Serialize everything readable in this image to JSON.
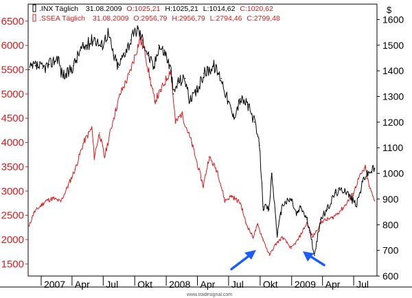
{
  "chart_data": {
    "type": "line",
    "title": "",
    "x_tick_labels": [
      "2007",
      "Apr",
      "Jul",
      "Okt",
      "2008",
      "Apr",
      "Jul",
      "Okt",
      "2009",
      "Apr",
      "Jul"
    ],
    "y_left_ticks": [
      1500,
      2000,
      2500,
      3000,
      3500,
      4000,
      4500,
      5000,
      5500,
      6000,
      6500
    ],
    "y_right_ticks": [
      600,
      700,
      800,
      900,
      1000,
      1100,
      1200,
      1300,
      1400,
      1500,
      1600
    ],
    "y_right_unit": "$",
    "ylim_left": [
      1250,
      6850
    ],
    "ylim_right": [
      600,
      1660
    ],
    "grid": false,
    "legend_position": "top-left",
    "watermark": "www.tradesignal.com",
    "series": [
      {
        "name": ".INX Täglich",
        "axis": "right",
        "color": "#000000",
        "legend": {
          "date": "31.08.2009",
          "open": "O:1025,21",
          "high": "H:1025,21",
          "low": "L:1014,62",
          "close": "C:1020,62"
        },
        "points": [
          [
            "2006-11-27",
            1405
          ],
          [
            "2006-12-15",
            1420
          ],
          [
            "2007-01-05",
            1410
          ],
          [
            "2007-01-25",
            1425
          ],
          [
            "2007-02-20",
            1455
          ],
          [
            "2007-02-28",
            1395
          ],
          [
            "2007-03-14",
            1380
          ],
          [
            "2007-04-05",
            1420
          ],
          [
            "2007-04-25",
            1480
          ],
          [
            "2007-05-15",
            1500
          ],
          [
            "2007-06-05",
            1530
          ],
          [
            "2007-06-25",
            1495
          ],
          [
            "2007-07-15",
            1550
          ],
          [
            "2007-07-31",
            1460
          ],
          [
            "2007-08-15",
            1415
          ],
          [
            "2007-08-31",
            1470
          ],
          [
            "2007-09-20",
            1520
          ],
          [
            "2007-10-09",
            1565
          ],
          [
            "2007-10-25",
            1520
          ],
          [
            "2007-11-10",
            1460
          ],
          [
            "2007-11-26",
            1410
          ],
          [
            "2007-12-10",
            1500
          ],
          [
            "2007-12-31",
            1465
          ],
          [
            "2008-01-15",
            1400
          ],
          [
            "2008-01-22",
            1310
          ],
          [
            "2008-02-05",
            1360
          ],
          [
            "2008-02-25",
            1370
          ],
          [
            "2008-03-10",
            1280
          ],
          [
            "2008-03-31",
            1320
          ],
          [
            "2008-04-20",
            1390
          ],
          [
            "2008-05-19",
            1420
          ],
          [
            "2008-06-10",
            1370
          ],
          [
            "2008-06-30",
            1280
          ],
          [
            "2008-07-15",
            1220
          ],
          [
            "2008-08-05",
            1290
          ],
          [
            "2008-08-25",
            1270
          ],
          [
            "2008-09-15",
            1200
          ],
          [
            "2008-09-29",
            1110
          ],
          [
            "2008-10-10",
            870
          ],
          [
            "2008-10-27",
            860
          ],
          [
            "2008-11-04",
            1000
          ],
          [
            "2008-11-20",
            760
          ],
          [
            "2008-12-05",
            880
          ],
          [
            "2008-12-31",
            900
          ],
          [
            "2009-01-15",
            840
          ],
          [
            "2009-01-28",
            870
          ],
          [
            "2009-02-15",
            820
          ],
          [
            "2009-03-09",
            680
          ],
          [
            "2009-03-26",
            820
          ],
          [
            "2009-04-15",
            860
          ],
          [
            "2009-05-08",
            925
          ],
          [
            "2009-06-05",
            940
          ],
          [
            "2009-06-25",
            900
          ],
          [
            "2009-07-10",
            880
          ],
          [
            "2009-07-31",
            985
          ],
          [
            "2009-08-15",
            1005
          ],
          [
            "2009-08-31",
            1020
          ]
        ]
      },
      {
        "name": ".SSEA Täglich",
        "axis": "left",
        "color": "#e0191c",
        "legend": {
          "date": "31.08.2009",
          "open": "O:2956,79",
          "high": "H:2956,79",
          "low": "L:2794,46",
          "close": "C:2799,48"
        },
        "points": [
          [
            "2006-11-27",
            2280
          ],
          [
            "2006-12-10",
            2550
          ],
          [
            "2006-12-31",
            2700
          ],
          [
            "2007-01-15",
            2800
          ],
          [
            "2007-02-05",
            2850
          ],
          [
            "2007-02-27",
            2780
          ],
          [
            "2007-03-20",
            3100
          ],
          [
            "2007-04-10",
            3450
          ],
          [
            "2007-05-05",
            4000
          ],
          [
            "2007-05-29",
            4300
          ],
          [
            "2007-06-05",
            3700
          ],
          [
            "2007-06-20",
            4200
          ],
          [
            "2007-07-05",
            3700
          ],
          [
            "2007-07-31",
            4500
          ],
          [
            "2007-08-20",
            5000
          ],
          [
            "2007-09-15",
            5400
          ],
          [
            "2007-10-16",
            6120
          ],
          [
            "2007-10-30",
            5900
          ],
          [
            "2007-11-15",
            5300
          ],
          [
            "2007-11-28",
            4850
          ],
          [
            "2007-12-15",
            5050
          ],
          [
            "2008-01-14",
            5500
          ],
          [
            "2008-01-28",
            4400
          ],
          [
            "2008-02-15",
            4600
          ],
          [
            "2008-03-15",
            4000
          ],
          [
            "2008-04-18",
            3100
          ],
          [
            "2008-05-05",
            3700
          ],
          [
            "2008-05-30",
            3400
          ],
          [
            "2008-06-20",
            2800
          ],
          [
            "2008-07-10",
            2900
          ],
          [
            "2008-08-05",
            2750
          ],
          [
            "2008-08-20",
            2350
          ],
          [
            "2008-09-10",
            2050
          ],
          [
            "2008-09-24",
            2300
          ],
          [
            "2008-10-10",
            2000
          ],
          [
            "2008-10-28",
            1680
          ],
          [
            "2008-11-15",
            1900
          ],
          [
            "2008-12-05",
            2050
          ],
          [
            "2008-12-31",
            1820
          ],
          [
            "2009-01-20",
            2000
          ],
          [
            "2009-02-15",
            2350
          ],
          [
            "2009-03-03",
            2050
          ],
          [
            "2009-03-31",
            2380
          ],
          [
            "2009-04-30",
            2450
          ],
          [
            "2009-05-31",
            2650
          ],
          [
            "2009-06-30",
            2950
          ],
          [
            "2009-07-15",
            3250
          ],
          [
            "2009-08-04",
            3480
          ],
          [
            "2009-08-15",
            3100
          ],
          [
            "2009-08-31",
            2800
          ]
        ]
      }
    ],
    "annotations": [
      {
        "type": "arrow",
        "color": "#1a5cff",
        "direction": "up-right"
      },
      {
        "type": "arrow",
        "color": "#1a5cff",
        "direction": "up-left"
      }
    ]
  }
}
